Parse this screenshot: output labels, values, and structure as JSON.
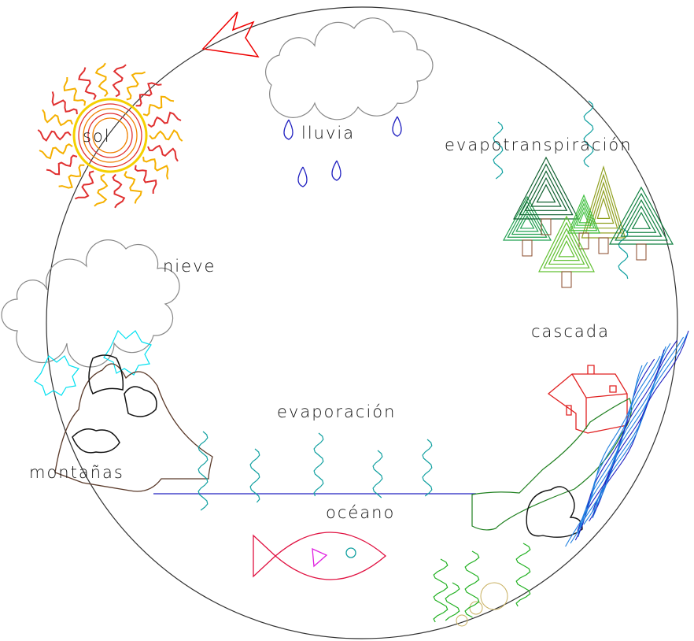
{
  "nodes": [
    {
      "label": "sol"
    },
    {
      "label": "lluvia"
    },
    {
      "label": "evapotranspiración"
    },
    {
      "label": "nieve"
    },
    {
      "label": "cascada"
    },
    {
      "label": "evaporación"
    },
    {
      "label": "montañas"
    },
    {
      "label": "océano"
    }
  ]
}
